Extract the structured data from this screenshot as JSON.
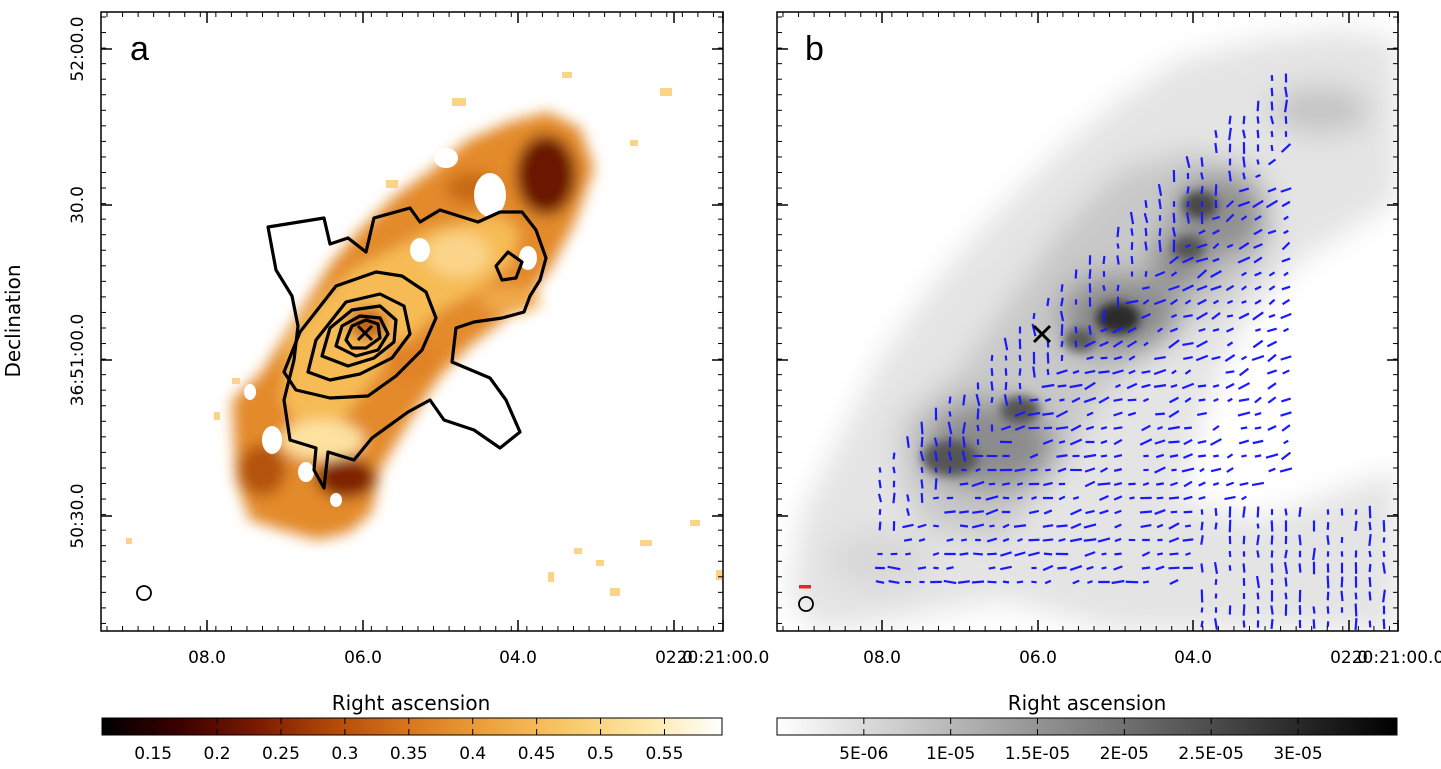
{
  "chart_data": [
    {
      "panel": "a",
      "type": "heatmap",
      "panel_label": "a",
      "xlabel": "Right ascension",
      "ylabel": "Declination",
      "x_tick_labels": [
        "08.0",
        "06.0",
        "04.0",
        "02.0",
        "20:21:00.0"
      ],
      "y_tick_labels": [
        "52:00.0",
        "30.0",
        "36:51:00.0",
        "50:30.0"
      ],
      "colormap": "afmhot",
      "colorbar": {
        "tick_labels": [
          "0.15",
          "0.2",
          "0.25",
          "0.3",
          "0.35",
          "0.4",
          "0.45",
          "0.5",
          "0.55"
        ],
        "range": [
          0.11,
          0.595
        ],
        "ticks": [
          0.15,
          0.2,
          0.25,
          0.3,
          0.35,
          0.4,
          0.45,
          0.5,
          0.55
        ],
        "colors": [
          "#000000",
          "#3c0000",
          "#7a1a00",
          "#b44a08",
          "#d9781e",
          "#eea23c",
          "#f8c867",
          "#fde7a6",
          "#ffffff"
        ]
      },
      "contours": 6,
      "source_marker": "x",
      "beam_marker": "circle"
    },
    {
      "panel": "b",
      "type": "heatmap",
      "panel_label": "b",
      "xlabel": "Right ascension",
      "x_tick_labels": [
        "08.0",
        "06.0",
        "04.0",
        "02.0",
        "20:21:00.0"
      ],
      "colormap": "gray_r",
      "colorbar": {
        "tick_labels": [
          "5E-06",
          "1E-05",
          "1.5E-05",
          "2E-05",
          "2.5E-05",
          "3E-05"
        ],
        "range": [
          0.0,
          3.57e-05
        ],
        "ticks": [
          5e-06,
          1e-05,
          1.5e-05,
          2e-05,
          2.5e-05,
          3e-05
        ],
        "colors": [
          "#ffffff",
          "#000000"
        ]
      },
      "overlay": "polarization vectors",
      "vector_color": "#1a1aff",
      "scale_bar_color": "#ee2222",
      "source_marker": "x",
      "beam_marker": "circle"
    }
  ]
}
